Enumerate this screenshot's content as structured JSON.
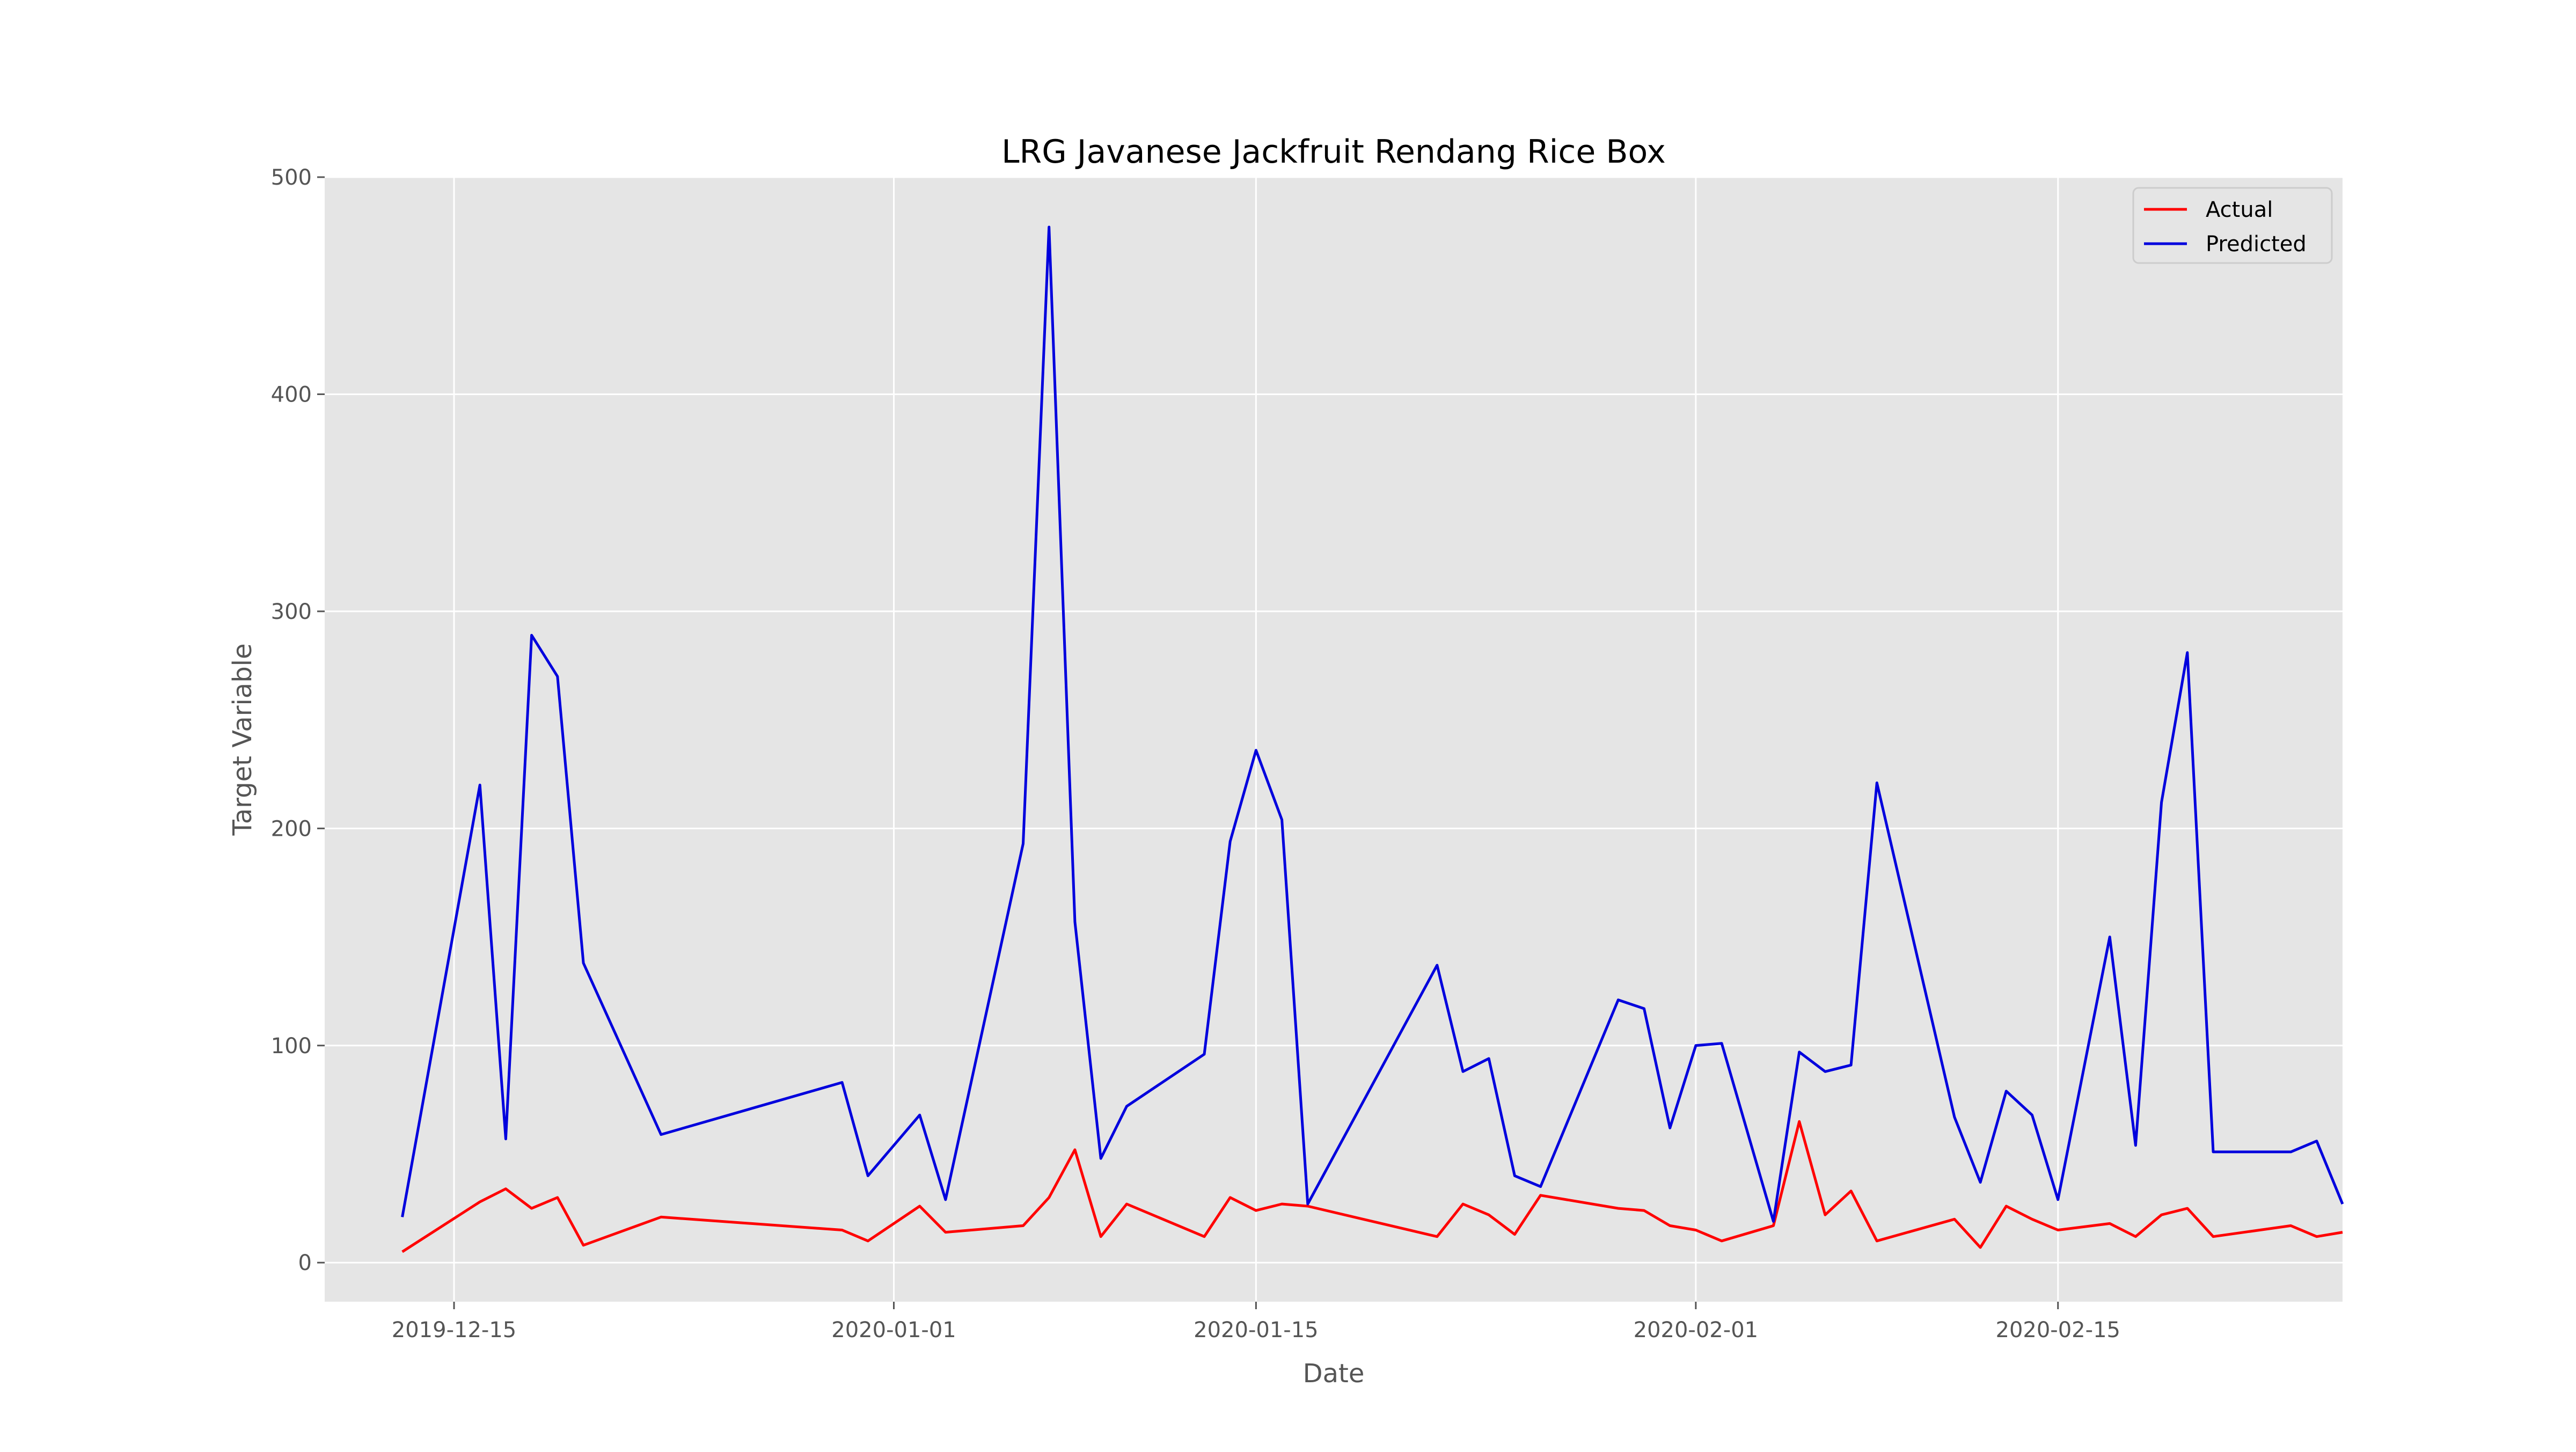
{
  "chart_data": {
    "type": "line",
    "title": "LRG Javanese Jackfruit Rendang Rice Box",
    "xlabel": "Date",
    "ylabel": "Target Variable",
    "xlim": [
      "2019-12-10",
      "2020-02-26"
    ],
    "ylim": [
      -18,
      500
    ],
    "x_ticks": [
      "2019-12-15",
      "2020-01-01",
      "2020-01-15",
      "2020-02-01",
      "2020-02-15"
    ],
    "y_ticks": [
      0,
      100,
      200,
      300,
      400,
      500
    ],
    "grid": true,
    "legend_position": "top-right",
    "series": [
      {
        "name": "Actual",
        "color": "#ff0000",
        "points": [
          [
            "2019-12-13",
            5
          ],
          [
            "2019-12-16",
            28
          ],
          [
            "2019-12-17",
            34
          ],
          [
            "2019-12-18",
            25
          ],
          [
            "2019-12-19",
            30
          ],
          [
            "2019-12-20",
            8
          ],
          [
            "2019-12-23",
            21
          ],
          [
            "2019-12-30",
            15
          ],
          [
            "2019-12-31",
            10
          ],
          [
            "2020-01-02",
            26
          ],
          [
            "2020-01-03",
            14
          ],
          [
            "2020-01-06",
            17
          ],
          [
            "2020-01-07",
            30
          ],
          [
            "2020-01-08",
            52
          ],
          [
            "2020-01-09",
            12
          ],
          [
            "2020-01-10",
            27
          ],
          [
            "2020-01-13",
            12
          ],
          [
            "2020-01-14",
            30
          ],
          [
            "2020-01-15",
            24
          ],
          [
            "2020-01-16",
            27
          ],
          [
            "2020-01-17",
            26
          ],
          [
            "2020-01-22",
            12
          ],
          [
            "2020-01-23",
            27
          ],
          [
            "2020-01-24",
            22
          ],
          [
            "2020-01-25",
            13
          ],
          [
            "2020-01-26",
            31
          ],
          [
            "2020-01-29",
            25
          ],
          [
            "2020-01-30",
            24
          ],
          [
            "2020-01-31",
            17
          ],
          [
            "2020-02-01",
            15
          ],
          [
            "2020-02-02",
            10
          ],
          [
            "2020-02-04",
            17
          ],
          [
            "2020-02-05",
            65
          ],
          [
            "2020-02-06",
            22
          ],
          [
            "2020-02-07",
            33
          ],
          [
            "2020-02-08",
            10
          ],
          [
            "2020-02-11",
            20
          ],
          [
            "2020-02-12",
            7
          ],
          [
            "2020-02-13",
            26
          ],
          [
            "2020-02-14",
            20
          ],
          [
            "2020-02-15",
            15
          ],
          [
            "2020-02-17",
            18
          ],
          [
            "2020-02-18",
            12
          ],
          [
            "2020-02-19",
            22
          ],
          [
            "2020-02-20",
            25
          ],
          [
            "2020-02-21",
            12
          ],
          [
            "2020-02-24",
            17
          ],
          [
            "2020-02-25",
            12
          ],
          [
            "2020-02-26",
            14
          ]
        ]
      },
      {
        "name": "Predicted",
        "color": "#0000dd",
        "points": [
          [
            "2019-12-13",
            21
          ],
          [
            "2019-12-16",
            220
          ],
          [
            "2019-12-17",
            57
          ],
          [
            "2019-12-18",
            289
          ],
          [
            "2019-12-19",
            270
          ],
          [
            "2019-12-20",
            138
          ],
          [
            "2019-12-23",
            59
          ],
          [
            "2019-12-30",
            83
          ],
          [
            "2019-12-31",
            40
          ],
          [
            "2020-01-02",
            68
          ],
          [
            "2020-01-03",
            29
          ],
          [
            "2020-01-06",
            193
          ],
          [
            "2020-01-07",
            477
          ],
          [
            "2020-01-08",
            157
          ],
          [
            "2020-01-09",
            48
          ],
          [
            "2020-01-10",
            72
          ],
          [
            "2020-01-13",
            96
          ],
          [
            "2020-01-14",
            194
          ],
          [
            "2020-01-15",
            236
          ],
          [
            "2020-01-16",
            204
          ],
          [
            "2020-01-17",
            27
          ],
          [
            "2020-01-22",
            137
          ],
          [
            "2020-01-23",
            88
          ],
          [
            "2020-01-24",
            94
          ],
          [
            "2020-01-25",
            40
          ],
          [
            "2020-01-26",
            35
          ],
          [
            "2020-01-29",
            121
          ],
          [
            "2020-01-30",
            117
          ],
          [
            "2020-01-31",
            62
          ],
          [
            "2020-02-01",
            100
          ],
          [
            "2020-02-02",
            101
          ],
          [
            "2020-02-04",
            19
          ],
          [
            "2020-02-05",
            97
          ],
          [
            "2020-02-06",
            88
          ],
          [
            "2020-02-07",
            91
          ],
          [
            "2020-02-08",
            221
          ],
          [
            "2020-02-11",
            67
          ],
          [
            "2020-02-12",
            37
          ],
          [
            "2020-02-13",
            79
          ],
          [
            "2020-02-14",
            68
          ],
          [
            "2020-02-15",
            29
          ],
          [
            "2020-02-17",
            150
          ],
          [
            "2020-02-18",
            54
          ],
          [
            "2020-02-19",
            212
          ],
          [
            "2020-02-20",
            281
          ],
          [
            "2020-02-21",
            51
          ],
          [
            "2020-02-24",
            51
          ],
          [
            "2020-02-25",
            56
          ],
          [
            "2020-02-26",
            27
          ]
        ]
      }
    ]
  }
}
